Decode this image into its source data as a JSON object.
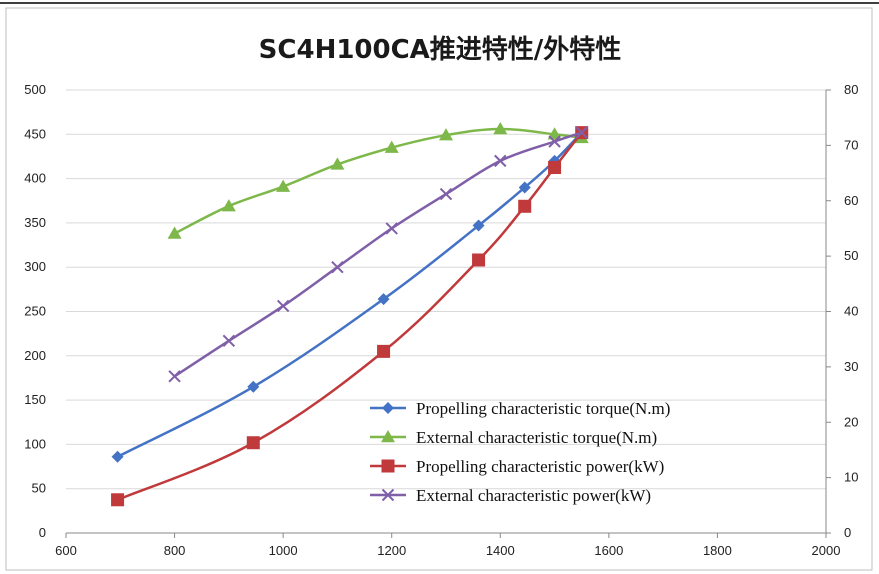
{
  "chart_data": {
    "type": "line",
    "title": "SC4H100CA推进特性/外特性",
    "xlim": [
      600,
      2000
    ],
    "x_ticks": [
      "600",
      "800",
      "1000",
      "1200",
      "1400",
      "1600",
      "1800",
      "2000"
    ],
    "y_left_lim": [
      0,
      500
    ],
    "y_left_ticks": [
      "0",
      "50",
      "100",
      "150",
      "200",
      "250",
      "300",
      "350",
      "400",
      "450",
      "500"
    ],
    "y_right_lim": [
      0,
      80
    ],
    "y_right_ticks": [
      "0",
      "10",
      "20",
      "30",
      "40",
      "50",
      "60",
      "70",
      "80"
    ],
    "grid": "horizontal",
    "legend_position": "bottom-right",
    "series": [
      {
        "name": "Propelling characteristic torque(N.m)",
        "axis": "left",
        "color": "#4472C4",
        "marker": "diamond",
        "x": [
          695,
          945,
          1185,
          1360,
          1445,
          1500,
          1550
        ],
        "y": [
          86,
          165,
          264,
          347,
          390,
          420,
          452
        ]
      },
      {
        "name": "External characteristic torque(N.m)",
        "axis": "left",
        "color": "#7EB84A",
        "marker": "triangle",
        "x": [
          800,
          900,
          1000,
          1100,
          1200,
          1300,
          1400,
          1500,
          1550
        ],
        "y": [
          338,
          369,
          391,
          416,
          435,
          449,
          456,
          450,
          446
        ]
      },
      {
        "name": "Propelling characteristic power(kW)",
        "axis": "right",
        "color": "#C0393B",
        "marker": "square",
        "x": [
          695,
          945,
          1185,
          1360,
          1445,
          1500,
          1550
        ],
        "y": [
          6,
          16.3,
          32.8,
          49.3,
          59,
          66,
          72.3
        ]
      },
      {
        "name": "External characteristic power(kW)",
        "axis": "right",
        "color": "#7F5FA8",
        "marker": "x",
        "x": [
          800,
          900,
          1000,
          1100,
          1200,
          1300,
          1400,
          1500,
          1550
        ],
        "y": [
          28.3,
          34.7,
          41,
          48,
          55,
          61.2,
          67.2,
          70.7,
          72.3
        ]
      }
    ]
  }
}
